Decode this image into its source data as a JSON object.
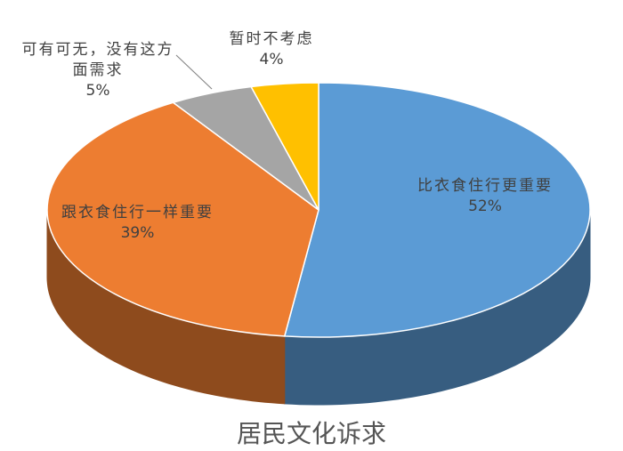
{
  "chart_data": {
    "type": "pie",
    "title": "居民文化诉求",
    "categories": [
      "比衣食住行更重要",
      "跟衣食住行一样重要",
      "可有可无，没有这方面需求",
      "暂时不考虑"
    ],
    "values": [
      52,
      39,
      5,
      4
    ],
    "value_labels": [
      "52%",
      "39%",
      "5%",
      "4%"
    ],
    "colors": [
      "#5b9bd5",
      "#ed7d31",
      "#a5a5a5",
      "#ffc000"
    ]
  }
}
